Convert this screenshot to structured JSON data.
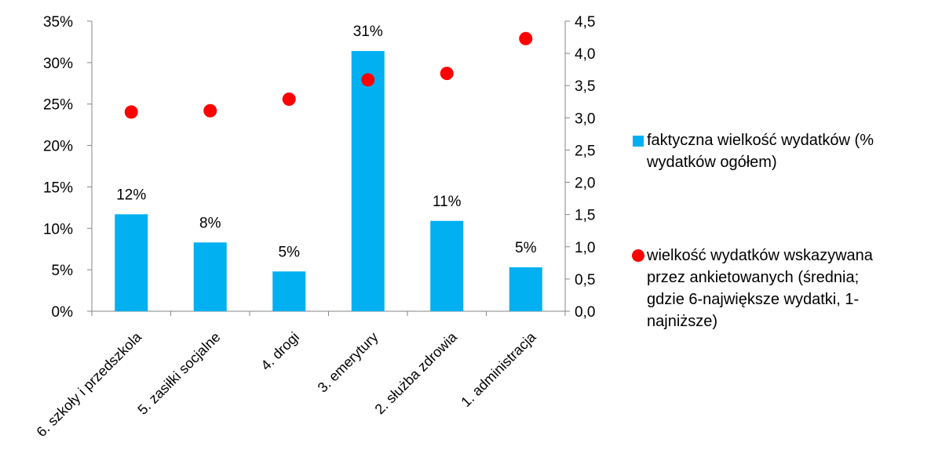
{
  "chart_data": {
    "type": "bar+scatter",
    "categories": [
      "6. szkoły i przedszkola",
      "5. zasiłki socjalne",
      "4. drogi",
      "3. emerytury",
      "2.  służba zdrowia",
      "1. administracja"
    ],
    "series": [
      {
        "name": "faktyczna wielkość wydatków (% wydatków ogółem)",
        "type": "bar",
        "axis": "left",
        "color": "#00B0F0",
        "values": [
          11.7,
          8.3,
          4.8,
          31.4,
          10.9,
          5.3
        ],
        "labels": [
          "12%",
          "8%",
          "5%",
          "31%",
          "11%",
          "5%"
        ]
      },
      {
        "name": "wielkość wydatków wskazywana przez ankietowanych (średnia; gdzie 6-największe wydatki, 1-najniższe)",
        "type": "scatter",
        "axis": "right",
        "color": "#FF0000",
        "values": [
          3.09,
          3.11,
          3.29,
          3.59,
          3.69,
          4.23
        ]
      }
    ],
    "y_left": {
      "min": 0,
      "max": 35,
      "step": 5,
      "ticks": [
        "0%",
        "5%",
        "10%",
        "15%",
        "20%",
        "25%",
        "30%",
        "35%"
      ]
    },
    "y_right": {
      "min": 0,
      "max": 4.5,
      "step": 0.5,
      "ticks": [
        "0,0",
        "0,5",
        "1,0",
        "1,5",
        "2,0",
        "2,5",
        "3,0",
        "3,5",
        "4,0",
        "4,5"
      ]
    },
    "grid": false,
    "legend_position": "right",
    "legend": {
      "bar_lines": [
        "faktyczna wielkość wydatków (%",
        "wydatków ogółem)"
      ],
      "dot_lines": [
        "wielkość wydatków wskazywana",
        "przez ankietowanych (średnia;",
        "gdzie 6-największe wydatki, 1-",
        "najniższe)"
      ]
    }
  }
}
